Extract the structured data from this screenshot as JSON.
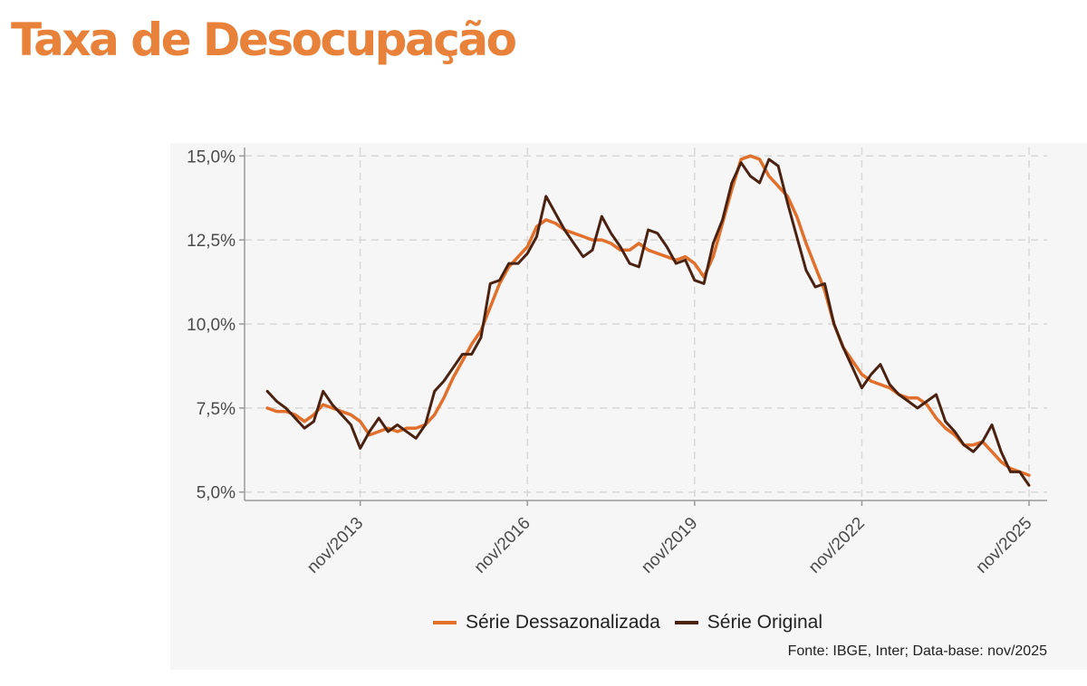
{
  "colors": {
    "title": "#e8813a",
    "seasonally_adjusted": "#e0702c",
    "original": "#4a2212",
    "grid": "#d8d8d8",
    "axis": "#9a9a9a",
    "panel": "#f6f6f6"
  },
  "title": "Taxa de Desocupação",
  "source": "Fonte: IBGE, Inter; Data-base: nov/2025",
  "chart_data": {
    "type": "line",
    "title": "Taxa de Desocupação",
    "xlabel": "",
    "ylabel": "",
    "x_range": [
      "2012-02",
      "2025-11"
    ],
    "ylim": [
      4.75,
      15.25
    ],
    "y_ticks": [
      5.0,
      7.5,
      10.0,
      12.5,
      15.0
    ],
    "y_tick_labels": [
      "5,0%",
      "7,5%",
      "10,0%",
      "12,5%",
      "15,0%"
    ],
    "x_ticks": [
      "2013-11",
      "2016-11",
      "2019-11",
      "2022-11",
      "2025-11"
    ],
    "x_tick_labels": [
      "nov/2013",
      "nov/2016",
      "nov/2019",
      "nov/2022",
      "nov/2025"
    ],
    "grid": true,
    "legend_position": "bottom",
    "series": [
      {
        "name": "Série Dessazonalizada",
        "color": "#e0702c",
        "points": [
          [
            "2012-03",
            7.5
          ],
          [
            "2012-05",
            7.4
          ],
          [
            "2012-07",
            7.4
          ],
          [
            "2012-09",
            7.3
          ],
          [
            "2012-11",
            7.1
          ],
          [
            "2013-01",
            7.3
          ],
          [
            "2013-03",
            7.6
          ],
          [
            "2013-05",
            7.5
          ],
          [
            "2013-07",
            7.4
          ],
          [
            "2013-09",
            7.3
          ],
          [
            "2013-11",
            7.1
          ],
          [
            "2014-01",
            6.7
          ],
          [
            "2014-03",
            6.8
          ],
          [
            "2014-05",
            6.9
          ],
          [
            "2014-07",
            6.8
          ],
          [
            "2014-09",
            6.9
          ],
          [
            "2014-11",
            6.9
          ],
          [
            "2015-01",
            7.0
          ],
          [
            "2015-03",
            7.3
          ],
          [
            "2015-05",
            7.8
          ],
          [
            "2015-07",
            8.4
          ],
          [
            "2015-09",
            8.9
          ],
          [
            "2015-11",
            9.4
          ],
          [
            "2016-01",
            9.8
          ],
          [
            "2016-03",
            10.5
          ],
          [
            "2016-05",
            11.2
          ],
          [
            "2016-07",
            11.7
          ],
          [
            "2016-09",
            12.0
          ],
          [
            "2016-11",
            12.3
          ],
          [
            "2017-01",
            12.9
          ],
          [
            "2017-03",
            13.1
          ],
          [
            "2017-05",
            13.0
          ],
          [
            "2017-07",
            12.8
          ],
          [
            "2017-09",
            12.7
          ],
          [
            "2017-11",
            12.6
          ],
          [
            "2018-01",
            12.5
          ],
          [
            "2018-03",
            12.5
          ],
          [
            "2018-05",
            12.4
          ],
          [
            "2018-07",
            12.2
          ],
          [
            "2018-09",
            12.2
          ],
          [
            "2018-11",
            12.4
          ],
          [
            "2019-01",
            12.2
          ],
          [
            "2019-03",
            12.1
          ],
          [
            "2019-05",
            12.0
          ],
          [
            "2019-07",
            11.9
          ],
          [
            "2019-09",
            12.0
          ],
          [
            "2019-11",
            11.8
          ],
          [
            "2020-01",
            11.4
          ],
          [
            "2020-03",
            12.0
          ],
          [
            "2020-05",
            13.0
          ],
          [
            "2020-07",
            14.0
          ],
          [
            "2020-09",
            14.9
          ],
          [
            "2020-11",
            15.0
          ],
          [
            "2021-01",
            14.9
          ],
          [
            "2021-03",
            14.4
          ],
          [
            "2021-05",
            14.1
          ],
          [
            "2021-07",
            13.8
          ],
          [
            "2021-09",
            13.2
          ],
          [
            "2021-11",
            12.4
          ],
          [
            "2022-01",
            11.7
          ],
          [
            "2022-03",
            11.0
          ],
          [
            "2022-05",
            10.0
          ],
          [
            "2022-07",
            9.3
          ],
          [
            "2022-09",
            8.9
          ],
          [
            "2022-11",
            8.5
          ],
          [
            "2023-01",
            8.3
          ],
          [
            "2023-03",
            8.2
          ],
          [
            "2023-05",
            8.1
          ],
          [
            "2023-07",
            7.9
          ],
          [
            "2023-09",
            7.8
          ],
          [
            "2023-11",
            7.8
          ],
          [
            "2024-01",
            7.6
          ],
          [
            "2024-03",
            7.2
          ],
          [
            "2024-05",
            6.9
          ],
          [
            "2024-07",
            6.7
          ],
          [
            "2024-09",
            6.4
          ],
          [
            "2024-11",
            6.4
          ],
          [
            "2025-01",
            6.5
          ],
          [
            "2025-03",
            6.2
          ],
          [
            "2025-05",
            5.9
          ],
          [
            "2025-07",
            5.7
          ],
          [
            "2025-09",
            5.6
          ],
          [
            "2025-11",
            5.5
          ]
        ]
      },
      {
        "name": "Série Original",
        "color": "#4a2212",
        "points": [
          [
            "2012-03",
            8.0
          ],
          [
            "2012-05",
            7.7
          ],
          [
            "2012-07",
            7.5
          ],
          [
            "2012-09",
            7.2
          ],
          [
            "2012-11",
            6.9
          ],
          [
            "2013-01",
            7.1
          ],
          [
            "2013-03",
            8.0
          ],
          [
            "2013-05",
            7.6
          ],
          [
            "2013-07",
            7.3
          ],
          [
            "2013-09",
            7.0
          ],
          [
            "2013-11",
            6.3
          ],
          [
            "2014-01",
            6.8
          ],
          [
            "2014-03",
            7.2
          ],
          [
            "2014-05",
            6.8
          ],
          [
            "2014-07",
            7.0
          ],
          [
            "2014-09",
            6.8
          ],
          [
            "2014-11",
            6.6
          ],
          [
            "2015-01",
            7.0
          ],
          [
            "2015-03",
            8.0
          ],
          [
            "2015-05",
            8.3
          ],
          [
            "2015-07",
            8.7
          ],
          [
            "2015-09",
            9.1
          ],
          [
            "2015-11",
            9.1
          ],
          [
            "2016-01",
            9.6
          ],
          [
            "2016-03",
            11.2
          ],
          [
            "2016-05",
            11.3
          ],
          [
            "2016-07",
            11.8
          ],
          [
            "2016-09",
            11.8
          ],
          [
            "2016-11",
            12.1
          ],
          [
            "2017-01",
            12.6
          ],
          [
            "2017-03",
            13.8
          ],
          [
            "2017-05",
            13.3
          ],
          [
            "2017-07",
            12.8
          ],
          [
            "2017-09",
            12.4
          ],
          [
            "2017-11",
            12.0
          ],
          [
            "2018-01",
            12.2
          ],
          [
            "2018-03",
            13.2
          ],
          [
            "2018-05",
            12.7
          ],
          [
            "2018-07",
            12.3
          ],
          [
            "2018-09",
            11.8
          ],
          [
            "2018-11",
            11.7
          ],
          [
            "2019-01",
            12.8
          ],
          [
            "2019-03",
            12.7
          ],
          [
            "2019-05",
            12.3
          ],
          [
            "2019-07",
            11.8
          ],
          [
            "2019-09",
            11.9
          ],
          [
            "2019-11",
            11.3
          ],
          [
            "2020-01",
            11.2
          ],
          [
            "2020-03",
            12.4
          ],
          [
            "2020-05",
            13.1
          ],
          [
            "2020-07",
            14.2
          ],
          [
            "2020-09",
            14.8
          ],
          [
            "2020-11",
            14.4
          ],
          [
            "2021-01",
            14.2
          ],
          [
            "2021-03",
            14.9
          ],
          [
            "2021-05",
            14.7
          ],
          [
            "2021-07",
            13.6
          ],
          [
            "2021-09",
            12.6
          ],
          [
            "2021-11",
            11.6
          ],
          [
            "2022-01",
            11.1
          ],
          [
            "2022-03",
            11.2
          ],
          [
            "2022-05",
            10.0
          ],
          [
            "2022-07",
            9.3
          ],
          [
            "2022-09",
            8.7
          ],
          [
            "2022-11",
            8.1
          ],
          [
            "2023-01",
            8.5
          ],
          [
            "2023-03",
            8.8
          ],
          [
            "2023-05",
            8.2
          ],
          [
            "2023-07",
            7.9
          ],
          [
            "2023-09",
            7.7
          ],
          [
            "2023-11",
            7.5
          ],
          [
            "2024-01",
            7.7
          ],
          [
            "2024-03",
            7.9
          ],
          [
            "2024-05",
            7.1
          ],
          [
            "2024-07",
            6.8
          ],
          [
            "2024-09",
            6.4
          ],
          [
            "2024-11",
            6.2
          ],
          [
            "2025-01",
            6.5
          ],
          [
            "2025-03",
            7.0
          ],
          [
            "2025-05",
            6.2
          ],
          [
            "2025-07",
            5.6
          ],
          [
            "2025-09",
            5.6
          ],
          [
            "2025-11",
            5.2
          ]
        ]
      }
    ]
  }
}
